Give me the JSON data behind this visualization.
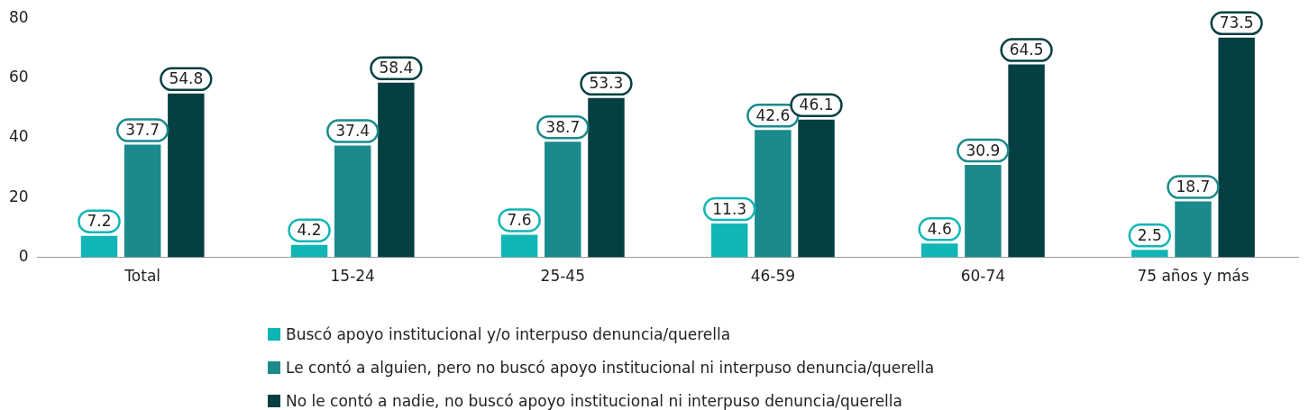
{
  "chart_data": {
    "type": "bar",
    "categories": [
      "Total",
      "15-24",
      "25-45",
      "46-59",
      "60-74",
      "75 años y más"
    ],
    "series": [
      {
        "name": "Buscó apoyo institucional y/o interpuso denuncia/querella",
        "color": "#12b5b5",
        "values": [
          7.2,
          4.2,
          7.6,
          11.3,
          4.6,
          2.5
        ]
      },
      {
        "name": "Le contó a alguien, pero no buscó apoyo institucional ni interpuso denuncia/querella",
        "color": "#1a8a8c",
        "values": [
          37.7,
          37.4,
          38.7,
          42.6,
          30.9,
          18.7
        ]
      },
      {
        "name": "No le contó a nadie, no buscó apoyo institucional ni interpuso denuncia/querella",
        "color": "#053f42",
        "values": [
          54.8,
          58.4,
          53.3,
          46.1,
          64.5,
          73.5
        ]
      }
    ],
    "ylim": [
      0,
      80
    ],
    "yticks": [
      0,
      20,
      40,
      60,
      80
    ],
    "grid": false,
    "legend": "bottom",
    "data_labels": true
  }
}
